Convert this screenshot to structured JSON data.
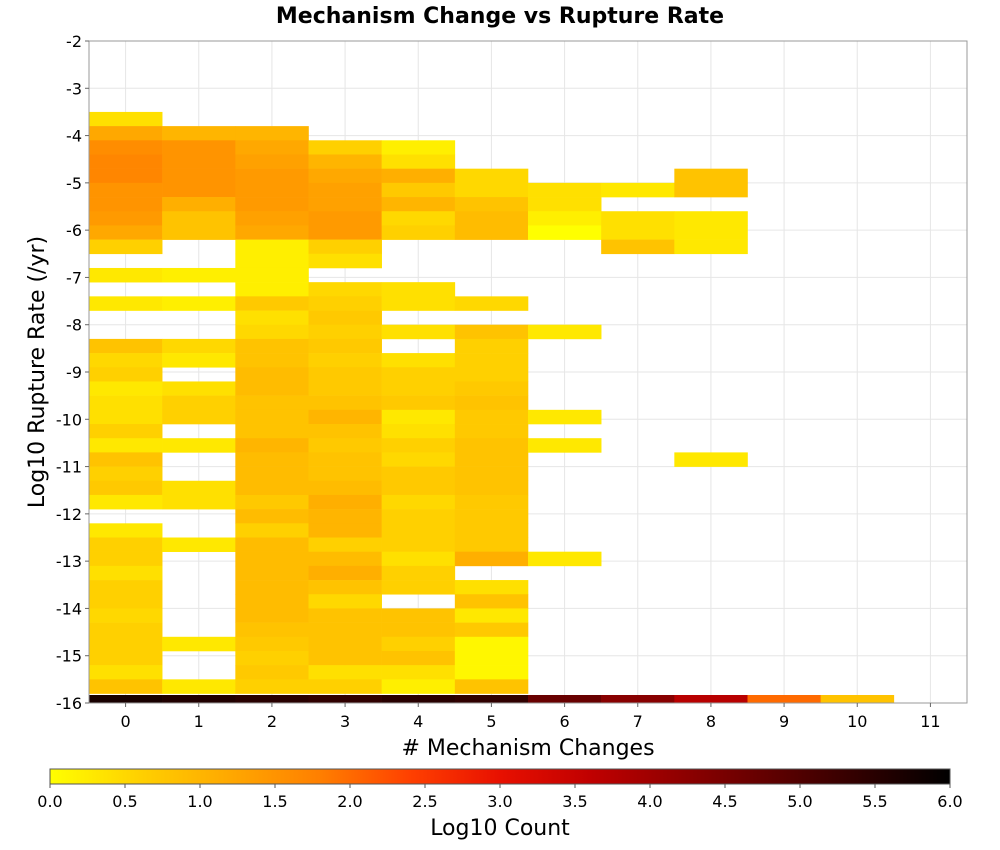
{
  "chart_data": {
    "type": "heatmap",
    "title": "Mechanism Change vs Rupture Rate",
    "xlabel": "# Mechanism Changes",
    "ylabel": "Log10 Rupture Rate (/yr)",
    "x_categories": [
      0,
      1,
      2,
      3,
      4,
      5,
      6,
      7,
      8,
      9,
      10,
      11
    ],
    "xlim": [
      -0.5,
      11.5
    ],
    "ylim": [
      -16,
      -2
    ],
    "y_ticks": [
      -2,
      -3,
      -4,
      -5,
      -6,
      -7,
      -8,
      -9,
      -10,
      -11,
      -12,
      -13,
      -14,
      -15,
      -16
    ],
    "bin_height": 0.3,
    "grid": true,
    "colorbar": {
      "label": "Log10 Count",
      "range": [
        0.0,
        6.0
      ],
      "ticks": [
        "0.0",
        "0.5",
        "1.0",
        "1.5",
        "2.0",
        "2.5",
        "3.0",
        "3.5",
        "4.0",
        "4.5",
        "5.0",
        "5.5",
        "6.0"
      ],
      "placement": "bottom",
      "colormap": [
        "#ffff00",
        "#ffd000",
        "#ffa800",
        "#ff7f00",
        "#ff4000",
        "#e81000",
        "#c00000",
        "#900000",
        "#600000",
        "#300000",
        "#000000"
      ]
    },
    "columns": [
      {
        "x": 0,
        "bins": [
          [
            -3.8,
            0.4
          ],
          [
            -4.1,
            1.2
          ],
          [
            -4.4,
            1.6
          ],
          [
            -4.7,
            1.7
          ],
          [
            -5.0,
            1.7
          ],
          [
            -5.3,
            1.5
          ],
          [
            -5.6,
            1.5
          ],
          [
            -5.9,
            1.4
          ],
          [
            -6.2,
            1.2
          ],
          [
            -6.5,
            0.6
          ],
          [
            -7.1,
            0.3
          ],
          [
            -7.7,
            0.3
          ],
          [
            -8.6,
            0.8
          ],
          [
            -8.9,
            0.5
          ],
          [
            -9.2,
            0.6
          ],
          [
            -9.5,
            0.3
          ],
          [
            -9.8,
            0.4
          ],
          [
            -10.1,
            0.4
          ],
          [
            -10.4,
            0.6
          ],
          [
            -10.7,
            0.3
          ],
          [
            -11.0,
            0.8
          ],
          [
            -11.3,
            0.6
          ],
          [
            -11.6,
            0.7
          ],
          [
            -11.9,
            0.3
          ],
          [
            -12.5,
            0.3
          ],
          [
            -12.8,
            0.6
          ],
          [
            -13.1,
            0.6
          ],
          [
            -13.4,
            0.4
          ],
          [
            -13.7,
            0.6
          ],
          [
            -14.0,
            0.6
          ],
          [
            -14.3,
            0.5
          ],
          [
            -14.6,
            0.6
          ],
          [
            -14.9,
            0.6
          ],
          [
            -15.2,
            0.6
          ],
          [
            -15.5,
            0.4
          ],
          [
            -15.8,
            0.8
          ],
          [
            -16.0,
            5.7
          ]
        ]
      },
      {
        "x": 1,
        "bins": [
          [
            -4.1,
            1.0
          ],
          [
            -4.4,
            1.5
          ],
          [
            -4.7,
            1.5
          ],
          [
            -5.0,
            1.5
          ],
          [
            -5.3,
            1.5
          ],
          [
            -5.6,
            1.1
          ],
          [
            -5.9,
            0.8
          ],
          [
            -6.2,
            0.8
          ],
          [
            -7.1,
            0.2
          ],
          [
            -7.7,
            0.2
          ],
          [
            -8.6,
            0.5
          ],
          [
            -8.9,
            0.3
          ],
          [
            -9.5,
            0.4
          ],
          [
            -9.8,
            0.6
          ],
          [
            -10.1,
            0.6
          ],
          [
            -10.7,
            0.3
          ],
          [
            -11.6,
            0.4
          ],
          [
            -11.9,
            0.4
          ],
          [
            -12.8,
            0.3
          ],
          [
            -14.9,
            0.3
          ],
          [
            -15.8,
            0.3
          ],
          [
            -16.0,
            5.6
          ]
        ]
      },
      {
        "x": 2,
        "bins": [
          [
            -4.1,
            1.0
          ],
          [
            -4.4,
            1.2
          ],
          [
            -4.7,
            1.3
          ],
          [
            -5.0,
            1.4
          ],
          [
            -5.3,
            1.4
          ],
          [
            -5.6,
            1.4
          ],
          [
            -5.9,
            1.3
          ],
          [
            -6.2,
            1.2
          ],
          [
            -6.5,
            0.2
          ],
          [
            -6.8,
            0.2
          ],
          [
            -7.1,
            0.2
          ],
          [
            -7.4,
            0.2
          ],
          [
            -7.7,
            0.7
          ],
          [
            -8.0,
            0.4
          ],
          [
            -8.3,
            0.5
          ],
          [
            -8.6,
            0.8
          ],
          [
            -8.9,
            0.8
          ],
          [
            -9.2,
            0.9
          ],
          [
            -9.5,
            0.9
          ],
          [
            -9.8,
            0.8
          ],
          [
            -10.1,
            0.8
          ],
          [
            -10.4,
            0.8
          ],
          [
            -10.7,
            1.0
          ],
          [
            -11.0,
            0.9
          ],
          [
            -11.3,
            0.9
          ],
          [
            -11.6,
            0.9
          ],
          [
            -11.9,
            0.7
          ],
          [
            -12.2,
            0.9
          ],
          [
            -12.5,
            0.6
          ],
          [
            -12.8,
            0.9
          ],
          [
            -13.1,
            0.9
          ],
          [
            -13.4,
            0.9
          ],
          [
            -13.7,
            0.9
          ],
          [
            -14.0,
            0.9
          ],
          [
            -14.3,
            0.9
          ],
          [
            -14.6,
            0.8
          ],
          [
            -14.9,
            0.7
          ],
          [
            -15.2,
            0.6
          ],
          [
            -15.5,
            0.7
          ],
          [
            -15.8,
            0.6
          ],
          [
            -16.0,
            5.5
          ]
        ]
      },
      {
        "x": 3,
        "bins": [
          [
            -4.4,
            0.6
          ],
          [
            -4.7,
            1.0
          ],
          [
            -5.0,
            1.2
          ],
          [
            -5.3,
            1.3
          ],
          [
            -5.6,
            1.3
          ],
          [
            -5.9,
            1.4
          ],
          [
            -6.2,
            1.4
          ],
          [
            -6.5,
            0.6
          ],
          [
            -6.8,
            0.4
          ],
          [
            -7.4,
            0.5
          ],
          [
            -7.7,
            0.6
          ],
          [
            -8.0,
            0.7
          ],
          [
            -8.3,
            0.6
          ],
          [
            -8.6,
            0.7
          ],
          [
            -8.9,
            0.6
          ],
          [
            -9.2,
            0.7
          ],
          [
            -9.5,
            0.7
          ],
          [
            -9.8,
            0.8
          ],
          [
            -10.1,
            1.0
          ],
          [
            -10.4,
            0.8
          ],
          [
            -10.7,
            0.7
          ],
          [
            -11.0,
            0.8
          ],
          [
            -11.3,
            0.8
          ],
          [
            -11.6,
            0.9
          ],
          [
            -11.9,
            1.1
          ],
          [
            -12.2,
            1.0
          ],
          [
            -12.5,
            1.0
          ],
          [
            -12.8,
            0.6
          ],
          [
            -13.1,
            0.9
          ],
          [
            -13.4,
            1.1
          ],
          [
            -13.7,
            0.8
          ],
          [
            -14.0,
            0.5
          ],
          [
            -14.3,
            0.8
          ],
          [
            -14.6,
            0.8
          ],
          [
            -14.9,
            0.8
          ],
          [
            -15.2,
            0.8
          ],
          [
            -15.5,
            0.4
          ],
          [
            -15.8,
            0.6
          ],
          [
            -16.0,
            5.4
          ]
        ]
      },
      {
        "x": 4,
        "bins": [
          [
            -4.4,
            0.2
          ],
          [
            -4.7,
            0.4
          ],
          [
            -5.0,
            1.1
          ],
          [
            -5.3,
            0.7
          ],
          [
            -5.6,
            1.0
          ],
          [
            -5.9,
            0.5
          ],
          [
            -6.2,
            0.6
          ],
          [
            -7.4,
            0.4
          ],
          [
            -7.7,
            0.4
          ],
          [
            -8.3,
            0.4
          ],
          [
            -8.9,
            0.4
          ],
          [
            -9.2,
            0.6
          ],
          [
            -9.5,
            0.6
          ],
          [
            -9.8,
            0.7
          ],
          [
            -10.1,
            0.3
          ],
          [
            -10.4,
            0.4
          ],
          [
            -10.7,
            0.6
          ],
          [
            -11.0,
            0.5
          ],
          [
            -11.3,
            0.7
          ],
          [
            -11.6,
            0.7
          ],
          [
            -11.9,
            0.5
          ],
          [
            -12.2,
            0.6
          ],
          [
            -12.5,
            0.6
          ],
          [
            -12.8,
            0.6
          ],
          [
            -13.1,
            0.4
          ],
          [
            -13.4,
            0.6
          ],
          [
            -13.7,
            0.6
          ],
          [
            -14.3,
            0.8
          ],
          [
            -14.6,
            0.8
          ],
          [
            -14.9,
            0.6
          ],
          [
            -15.2,
            0.8
          ],
          [
            -15.5,
            0.4
          ],
          [
            -15.8,
            0.2
          ],
          [
            -16.0,
            5.5
          ]
        ]
      },
      {
        "x": 5,
        "bins": [
          [
            -5.0,
            0.5
          ],
          [
            -5.3,
            0.5
          ],
          [
            -5.6,
            0.8
          ],
          [
            -5.9,
            0.9
          ],
          [
            -6.2,
            0.9
          ],
          [
            -7.7,
            0.5
          ],
          [
            -8.3,
            0.8
          ],
          [
            -8.6,
            0.6
          ],
          [
            -8.9,
            0.6
          ],
          [
            -9.2,
            0.6
          ],
          [
            -9.5,
            0.7
          ],
          [
            -9.8,
            0.8
          ],
          [
            -10.1,
            0.7
          ],
          [
            -10.4,
            0.7
          ],
          [
            -10.7,
            0.8
          ],
          [
            -11.0,
            0.8
          ],
          [
            -11.3,
            0.8
          ],
          [
            -11.6,
            0.8
          ],
          [
            -11.9,
            0.7
          ],
          [
            -12.2,
            0.7
          ],
          [
            -12.5,
            0.7
          ],
          [
            -12.8,
            0.7
          ],
          [
            -13.1,
            1.1
          ],
          [
            -13.7,
            0.4
          ],
          [
            -14.0,
            0.8
          ],
          [
            -14.3,
            0.3
          ],
          [
            -14.6,
            0.7
          ],
          [
            -14.9,
            0.1
          ],
          [
            -15.2,
            0.1
          ],
          [
            -15.5,
            0.1
          ],
          [
            -15.8,
            0.8
          ],
          [
            -16.0,
            5.4
          ]
        ]
      },
      {
        "x": 6,
        "bins": [
          [
            -5.3,
            0.4
          ],
          [
            -5.6,
            0.4
          ],
          [
            -5.9,
            0.2
          ],
          [
            -6.2,
            0.0
          ],
          [
            -8.3,
            0.3
          ],
          [
            -10.1,
            0.3
          ],
          [
            -10.7,
            0.3
          ],
          [
            -13.1,
            0.3
          ],
          [
            -16.0,
            4.7
          ]
        ]
      },
      {
        "x": 7,
        "bins": [
          [
            -5.3,
            0.3
          ],
          [
            -5.9,
            0.4
          ],
          [
            -6.2,
            0.4
          ],
          [
            -6.5,
            0.8
          ],
          [
            -16.0,
            4.3
          ]
        ]
      },
      {
        "x": 8,
        "bins": [
          [
            -5.0,
            0.8
          ],
          [
            -5.3,
            0.8
          ],
          [
            -5.9,
            0.3
          ],
          [
            -6.2,
            0.3
          ],
          [
            -6.5,
            0.3
          ],
          [
            -11.0,
            0.3
          ],
          [
            -16.0,
            3.7
          ]
        ]
      },
      {
        "x": 9,
        "bins": [
          [
            -16.0,
            2.0
          ]
        ]
      },
      {
        "x": 10,
        "bins": [
          [
            -16.0,
            0.8
          ]
        ]
      },
      {
        "x": 11,
        "bins": []
      }
    ]
  }
}
